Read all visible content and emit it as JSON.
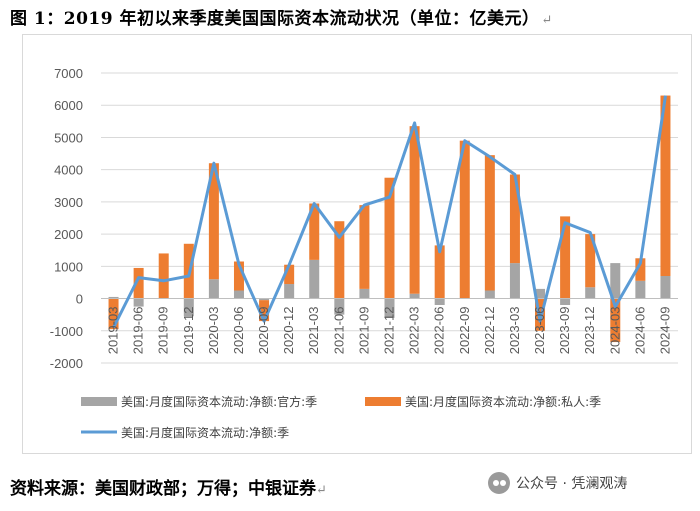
{
  "page": {
    "title": "图 1：2019 年初以来季度美国国际资本流动状况（单位：亿美元）",
    "source": "资料来源：美国财政部；万得；中银证券",
    "watermark": "公众号 · 凭澜观涛"
  },
  "colors": {
    "official": "#a5a5a5",
    "private": "#ed7d31",
    "net": "#5b9bd5",
    "grid": "#d9d9d9",
    "axis": "#bfbfbf",
    "text": "#595959"
  },
  "chart_data": {
    "type": "bar",
    "stacked": true,
    "title": "",
    "xlabel": "",
    "ylabel": "",
    "ylim": [
      -2000,
      7000
    ],
    "yticks": [
      -2000,
      -1000,
      0,
      1000,
      2000,
      3000,
      4000,
      5000,
      6000,
      7000
    ],
    "grid": true,
    "legend_position": "bottom",
    "categories": [
      "2019-03",
      "2019-06",
      "2019-09",
      "2019-12",
      "2020-03",
      "2020-06",
      "2020-09",
      "2020-12",
      "2021-03",
      "2021-06",
      "2021-09",
      "2021-12",
      "2022-03",
      "2022-06",
      "2022-09",
      "2022-12",
      "2023-03",
      "2023-06",
      "2023-09",
      "2023-12",
      "2024-03",
      "2024-06",
      "2024-09"
    ],
    "tick_labels": [
      "2019-03",
      "2019-06",
      "2019-09",
      "2019-12",
      "2020-03",
      "2020-06",
      "2020-09",
      "2020-12",
      "2021-03",
      "2021-06",
      "2021-09",
      "2021-12",
      "2022-03",
      "2022-06",
      "2022-09",
      "2022-12",
      "2023-03",
      "2023-06",
      "2023-09",
      "2023-12",
      "2024-03",
      "2024-06",
      "2024-09"
    ],
    "series": [
      {
        "name": "美国:月度国际资本流动:净额:官方:季",
        "kind": "bar",
        "values": [
          50,
          -250,
          0,
          -550,
          600,
          250,
          -50,
          450,
          1200,
          -500,
          300,
          -600,
          150,
          -200,
          0,
          250,
          1100,
          300,
          -200,
          350,
          1100,
          550,
          700
        ]
      },
      {
        "name": "美国:月度国际资本流动:净额:私人:季",
        "kind": "bar",
        "values": [
          -950,
          950,
          1400,
          1700,
          3600,
          900,
          -650,
          600,
          1750,
          2400,
          2600,
          3750,
          5200,
          1650,
          4900,
          4200,
          2750,
          -1000,
          2550,
          1650,
          -1350,
          700,
          5600
        ]
      },
      {
        "name": "美国:月度国际资本流动:净额:季",
        "kind": "line",
        "values": [
          -900,
          650,
          550,
          700,
          4200,
          1050,
          -700,
          1050,
          2950,
          1900,
          2900,
          3150,
          5450,
          1450,
          4900,
          4400,
          3850,
          -700,
          2350,
          2050,
          -250,
          1100,
          6300
        ]
      }
    ]
  }
}
